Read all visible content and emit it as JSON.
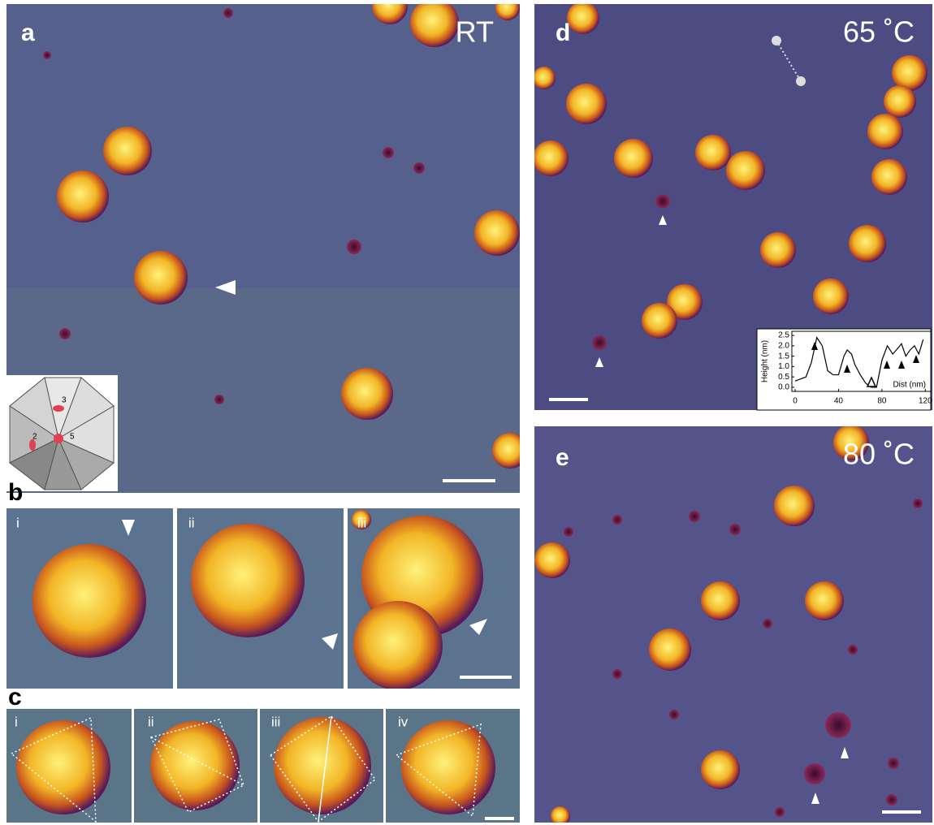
{
  "panels": {
    "a": {
      "label": "a",
      "condition": "RT",
      "inset_labels": [
        "3",
        "2",
        "5"
      ]
    },
    "b": {
      "label": "b",
      "sub_labels": [
        "i",
        "ii",
        "iii"
      ]
    },
    "c": {
      "label": "c",
      "sub_labels": [
        "i",
        "ii",
        "iii",
        "iv"
      ]
    },
    "d": {
      "label": "d",
      "condition": "65 ˚C"
    },
    "e": {
      "label": "e",
      "condition": "80 ˚C"
    }
  },
  "chart_data": {
    "type": "line",
    "xlabel": "Dist (nm)",
    "ylabel": "Height (nm)",
    "x": [
      0,
      5,
      10,
      15,
      20,
      25,
      30,
      35,
      40,
      45,
      48,
      52,
      55,
      60,
      65,
      70,
      75,
      80,
      85,
      90,
      95,
      98,
      102,
      106,
      110,
      114,
      118
    ],
    "values": [
      0.3,
      0.4,
      0.5,
      1.2,
      2.4,
      2.0,
      0.8,
      0.6,
      0.6,
      1.5,
      1.8,
      1.6,
      1.1,
      0.6,
      0.2,
      0.0,
      0.0,
      1.3,
      2.0,
      1.6,
      1.9,
      2.1,
      1.5,
      1.8,
      2.0,
      1.6,
      2.3
    ],
    "color": "#000000",
    "xlim": [
      -3,
      125
    ],
    "ylim": [
      -0.2,
      2.7
    ],
    "xticks": [
      0,
      40,
      80,
      120
    ],
    "yticks": [
      {
        "value": 0,
        "label": "0.0"
      },
      0.5,
      {
        "value": 1,
        "label": "1.0"
      },
      1.5,
      {
        "value": 2,
        "label": "2.0"
      },
      2.5
    ]
  }
}
